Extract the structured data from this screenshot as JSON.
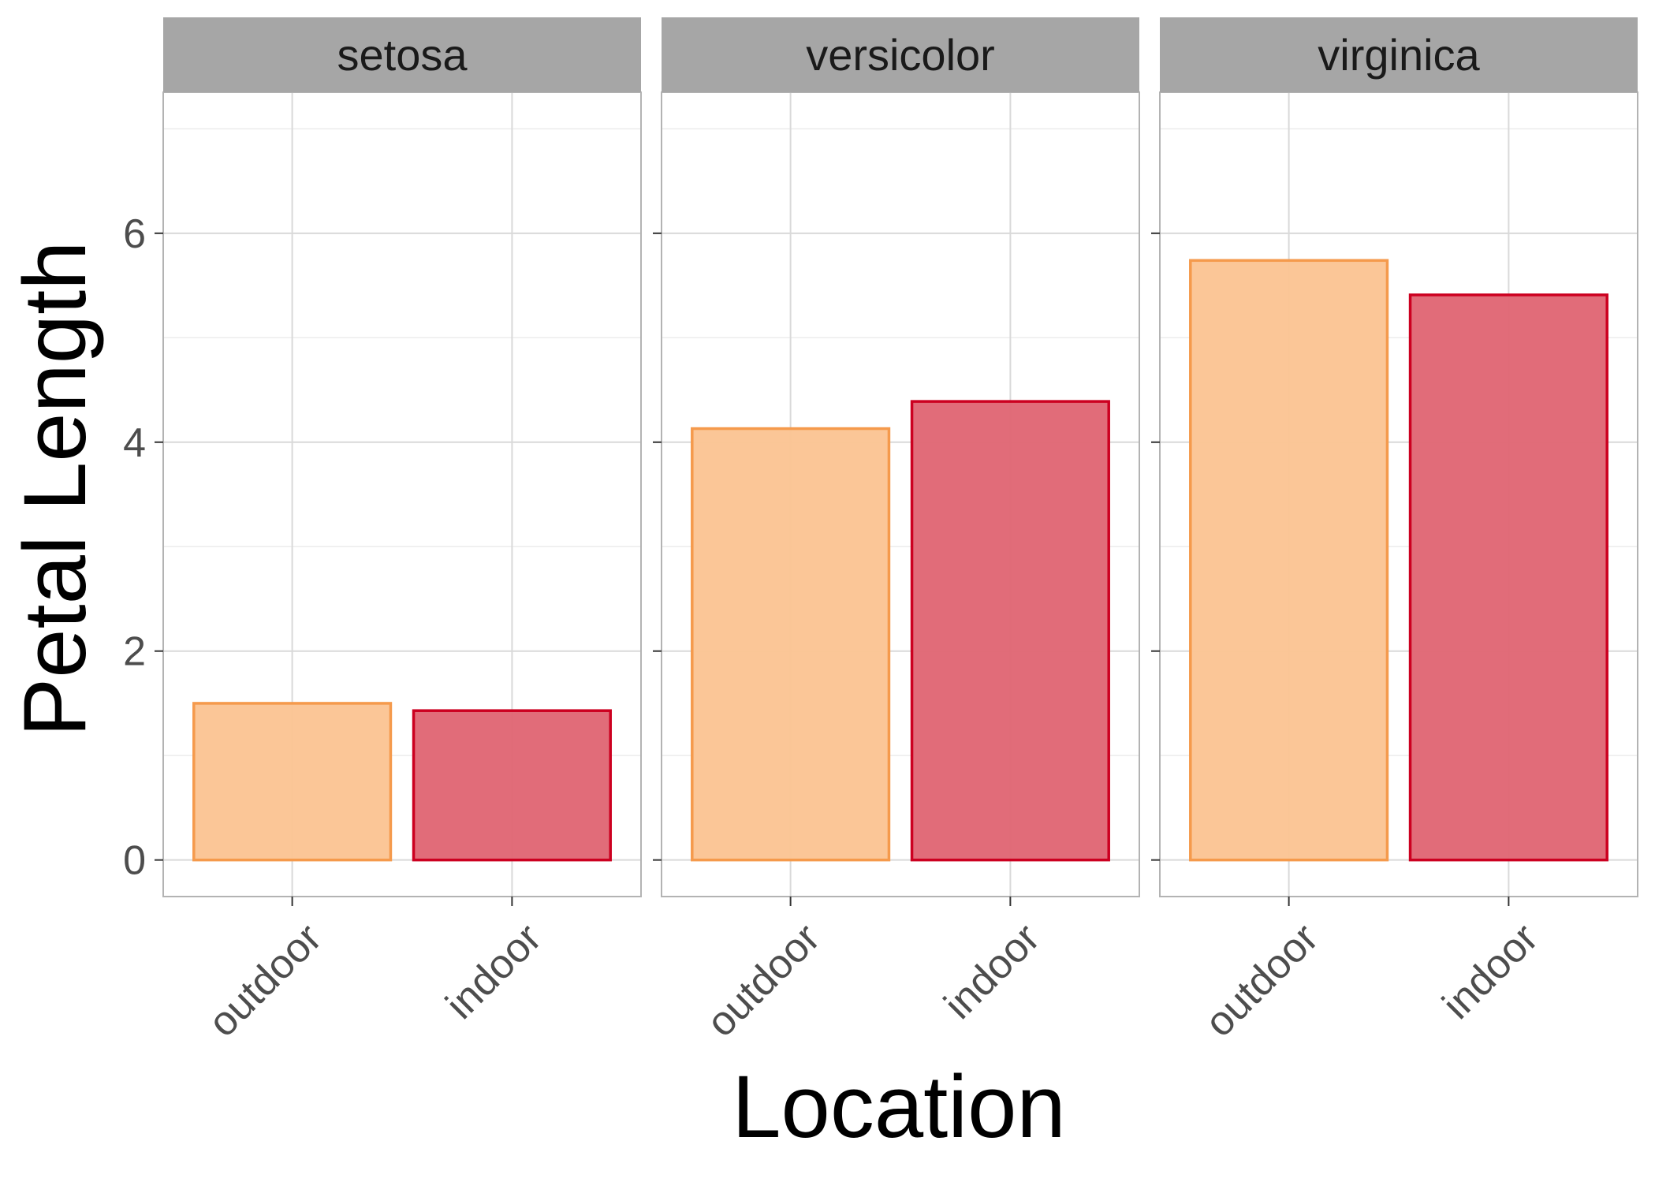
{
  "chart_data": {
    "type": "bar",
    "facet_by": "species",
    "facets": [
      {
        "label": "setosa",
        "categories": [
          "outdoor",
          "indoor"
        ],
        "values": [
          1.5,
          1.43
        ]
      },
      {
        "label": "versicolor",
        "categories": [
          "outdoor",
          "indoor"
        ],
        "values": [
          4.13,
          4.39
        ]
      },
      {
        "label": "virginica",
        "categories": [
          "outdoor",
          "indoor"
        ],
        "values": [
          5.74,
          5.41
        ]
      }
    ],
    "xlabel": "Location",
    "ylabel": "Petal Length",
    "ylim": [
      -0.35,
      7.35
    ],
    "yticks": [
      0,
      2,
      4,
      6
    ],
    "grid": true,
    "colors": {
      "outdoor_fill": "#fbc493",
      "outdoor_stroke": "#f59a4c",
      "indoor_fill": "#e06674",
      "indoor_stroke": "#cc0020",
      "strip_bg": "#a6a6a6",
      "grid_major": "#d9d9d9",
      "grid_minor": "#ececec",
      "panel_border": "#b3b3b3"
    }
  }
}
